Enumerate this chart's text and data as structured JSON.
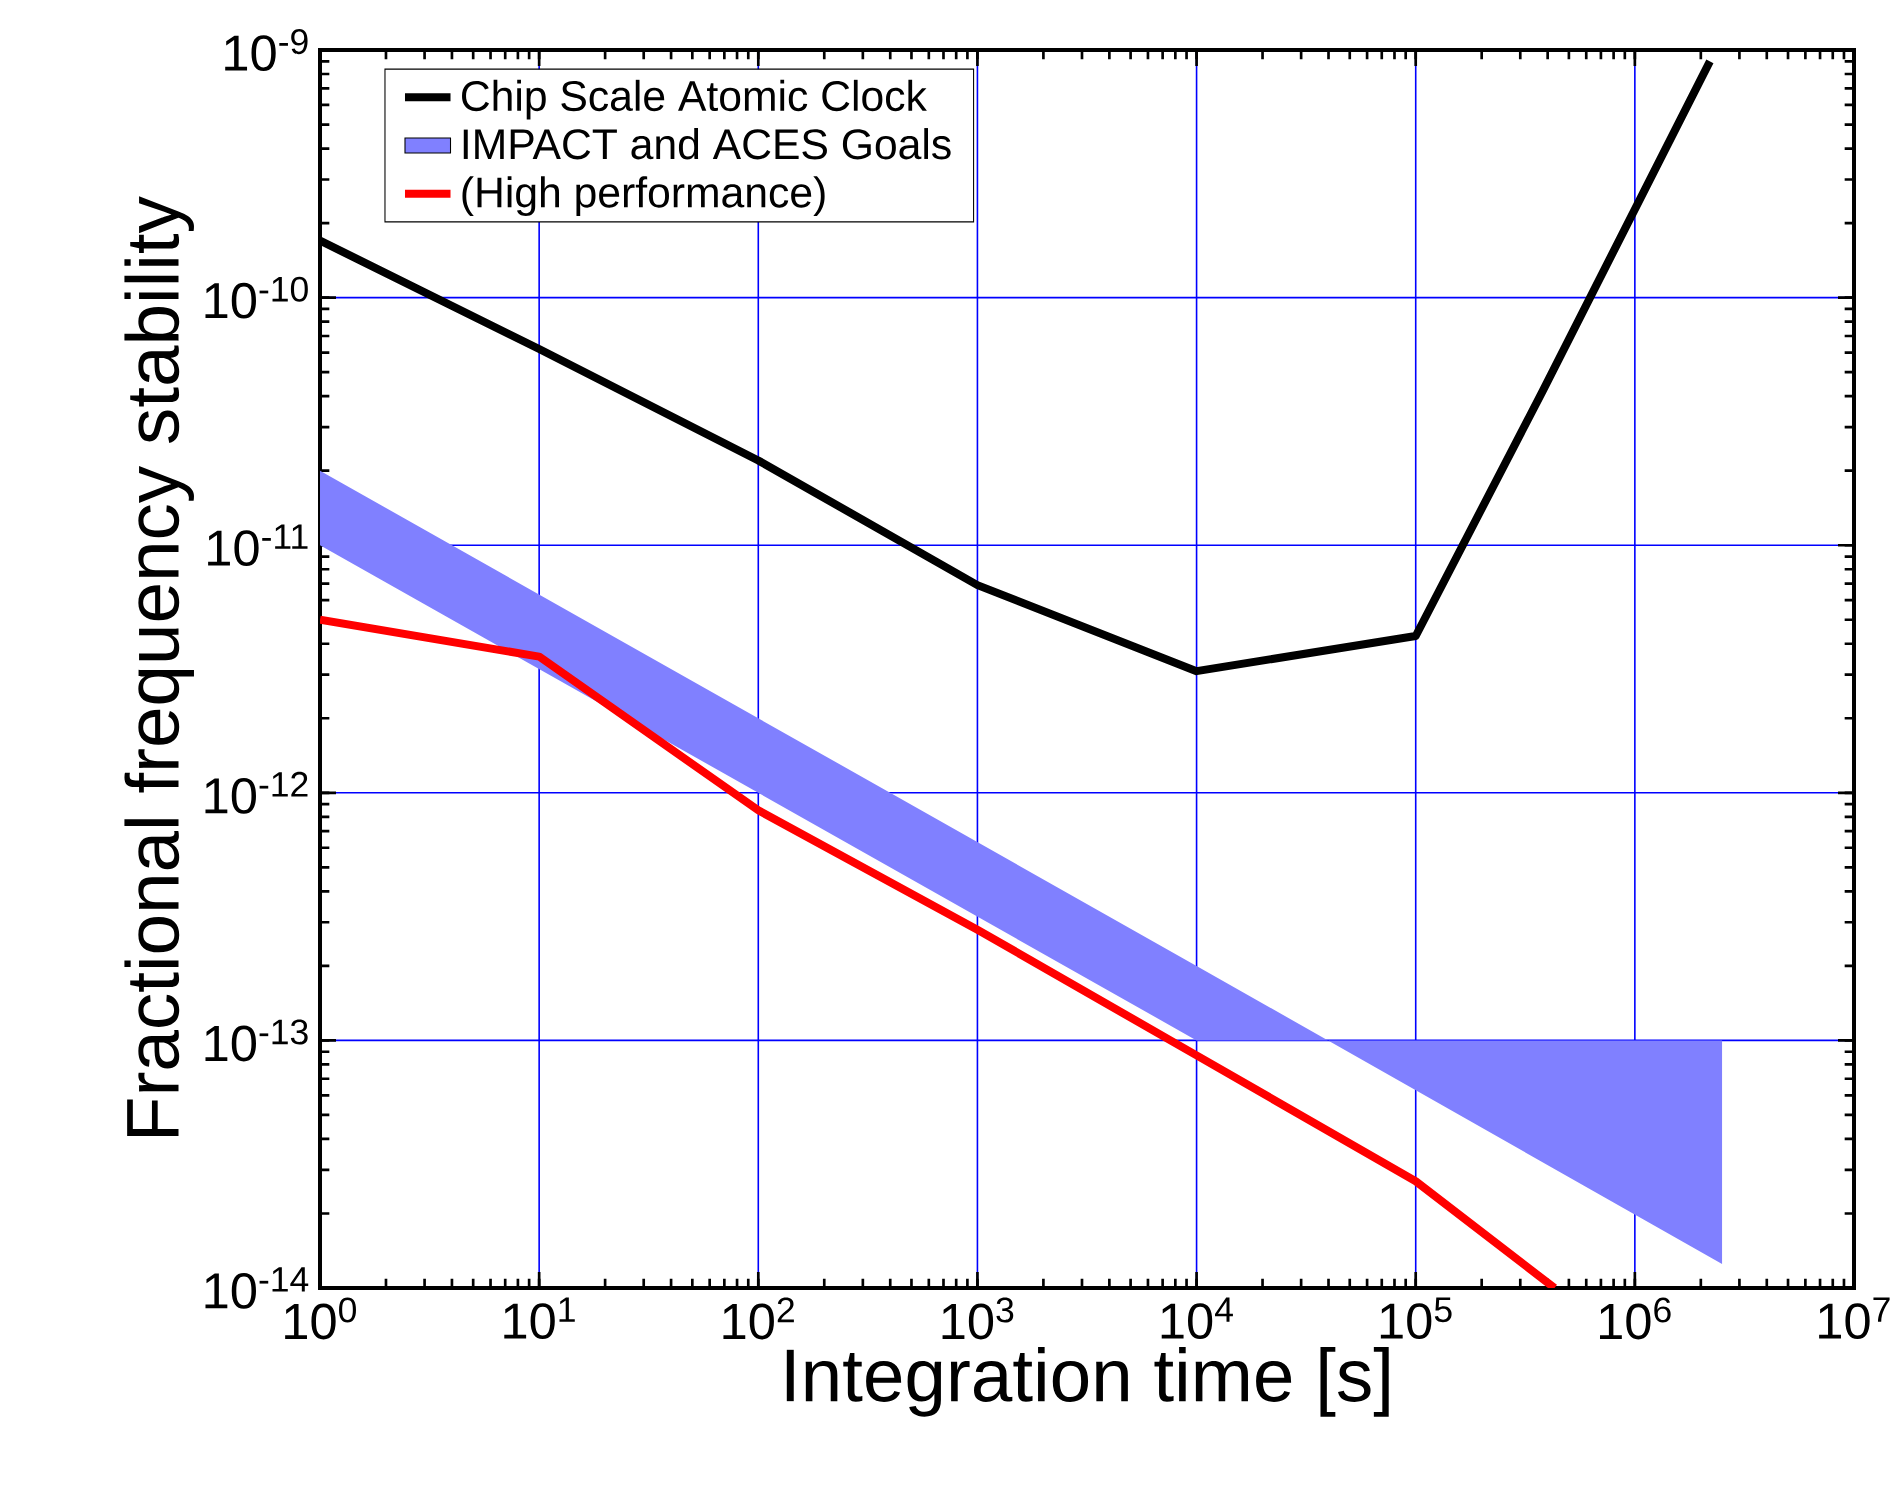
{
  "chart_data": {
    "type": "line",
    "xlabel": "Integration time [s]",
    "ylabel": "Fractional frequency stability",
    "log": "xy",
    "grid": true,
    "legend": "top left",
    "xlim": [
      1,
      10000000
    ],
    "ylim": [
      1e-14,
      1e-09
    ],
    "xticks": [
      {
        "value": 1,
        "label": "10$^{0}$"
      },
      {
        "value": 10,
        "label": "10$^{1}$"
      },
      {
        "value": 100,
        "label": "10$^{2}$"
      },
      {
        "value": 1000,
        "label": "10$^{3}$"
      },
      {
        "value": 10000,
        "label": "10$^{4}$"
      },
      {
        "value": 100000,
        "label": "10$^{5}$"
      },
      {
        "value": 1000000,
        "label": "10$^{6}$"
      },
      {
        "value": 10000000,
        "label": "10$^{7}$"
      }
    ],
    "yticks": [
      {
        "value": 1e-14,
        "label": "10$^{-14}$"
      },
      {
        "value": 1e-13,
        "label": "10$^{-13}$"
      },
      {
        "value": 1e-12,
        "label": "10$^{-12}$"
      },
      {
        "value": 1e-11,
        "label": "10$^{-11}$"
      },
      {
        "value": 1e-10,
        "label": "10$^{-10}$"
      },
      {
        "value": 1e-09,
        "label": "10$^{-9}$"
      }
    ],
    "series": [
      {
        "name": "Chip Scale Atomic Clock",
        "color": "#000000",
        "x": [
          1,
          10,
          100,
          1000,
          10000,
          100000,
          380000,
          2200000
        ],
        "values": [
          1.7e-10,
          6.2e-11,
          2.2e-11,
          6.9e-12,
          3.1e-12,
          4.3e-12,
          4.2e-11,
          9e-10
        ]
      },
      {
        "name": "IMPACT and ACES Goals",
        "color": "#8080ff",
        "x": [
          1,
          10000,
          2500000
        ],
        "values": [
          null,
          null,
          null
        ],
        "lower": [
          1e-11,
          1e-13,
          1e-13
        ],
        "upper": [
          2e-11,
          2e-13,
          1.25e-14
        ]
      },
      {
        "name": "(High performance)",
        "color": "#ff0000",
        "x": [
          1,
          10,
          100,
          1000,
          10000,
          100000,
          430000
        ],
        "values": [
          5e-12,
          3.55e-12,
          8.5e-13,
          2.8e-13,
          8.7e-14,
          2.7e-14,
          1e-14
        ]
      }
    ]
  }
}
